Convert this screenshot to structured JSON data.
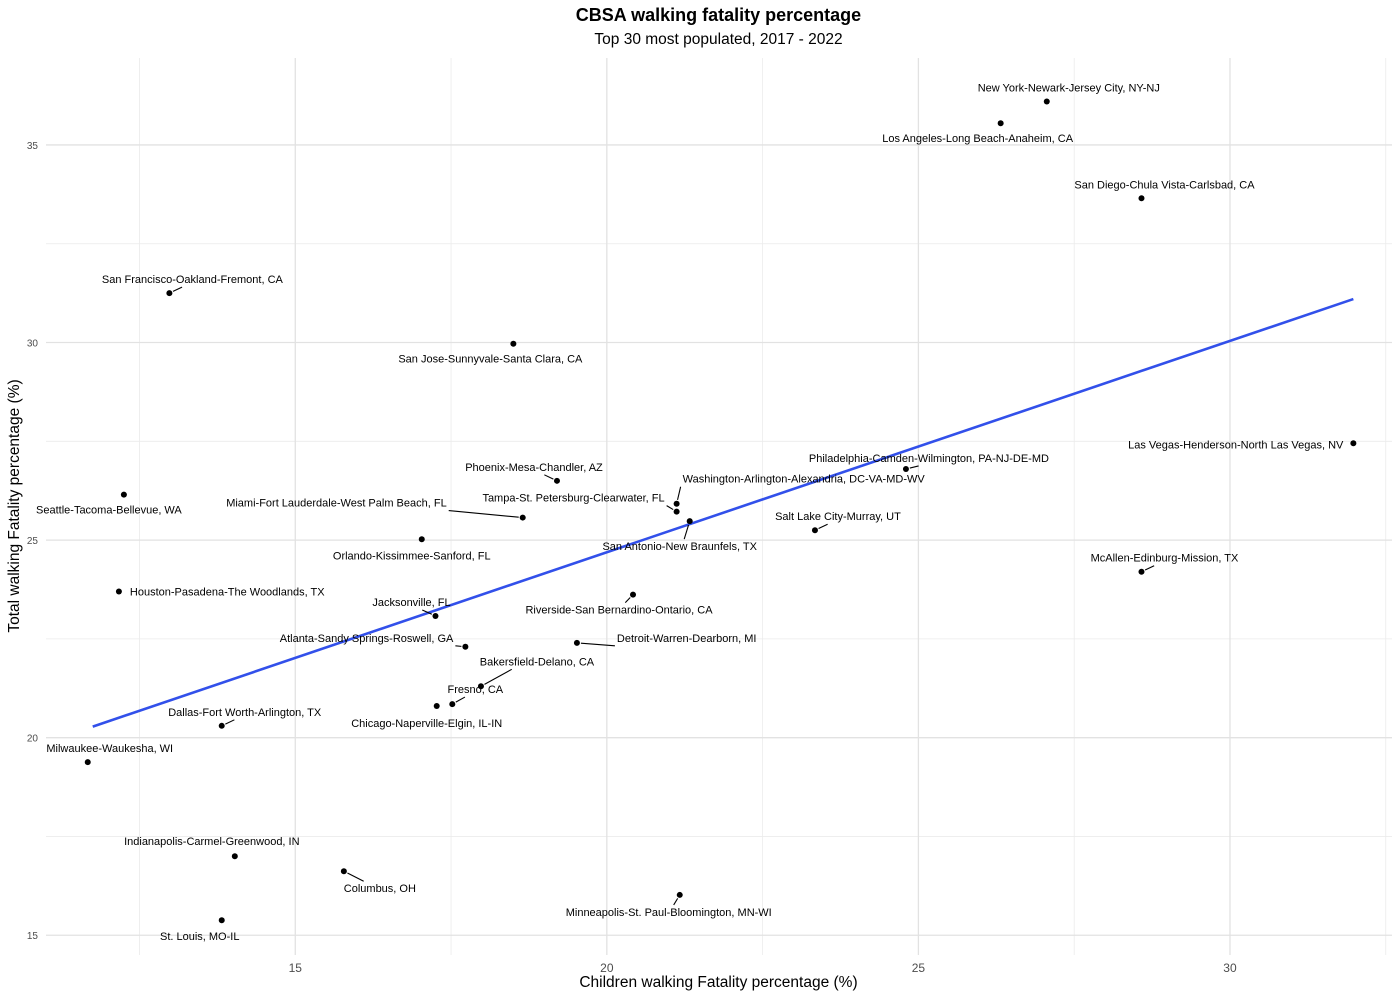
{
  "chart_data": {
    "type": "scatter",
    "title": "CBSA walking fatality percentage",
    "subtitle": "Top 30 most populated, 2017 - 2022",
    "xlabel": "Children walking Fatality percentage (%)",
    "ylabel": "Total walking Fatality percentage (%)",
    "xlim": [
      11.0,
      32.6
    ],
    "ylim": [
      14.5,
      37.2
    ],
    "xticks": [
      15,
      20,
      25,
      30
    ],
    "yticks": [
      15,
      20,
      25,
      30,
      35
    ],
    "grid": true,
    "legend": "none",
    "point_color": "#000000",
    "trend_color": "#3250ea",
    "trendline": {
      "x": [
        11.75,
        31.98
      ],
      "y": [
        20.28,
        31.1
      ]
    },
    "points": [
      {
        "label": "New York-Newark-Jersey City, NY-NJ",
        "x": 27.06,
        "y": 36.1
      },
      {
        "label": "Los Angeles-Long Beach-Anaheim, CA",
        "x": 26.32,
        "y": 35.55
      },
      {
        "label": "San Diego-Chula Vista-Carlsbad, CA",
        "x": 28.58,
        "y": 33.65
      },
      {
        "label": "San Francisco-Oakland-Fremont, CA",
        "x": 12.98,
        "y": 31.25
      },
      {
        "label": "San Jose-Sunnyvale-Santa Clara, CA",
        "x": 18.5,
        "y": 29.97
      },
      {
        "label": "Las Vegas-Henderson-North Las Vegas, NV",
        "x": 31.98,
        "y": 27.45
      },
      {
        "label": "Philadelphia-Camden-Wilmington, PA-NJ-DE-MD",
        "x": 24.8,
        "y": 26.8
      },
      {
        "label": "Phoenix-Mesa-Chandler, AZ",
        "x": 19.2,
        "y": 26.5
      },
      {
        "label": "Seattle-Tacoma-Bellevue, WA",
        "x": 12.25,
        "y": 26.15
      },
      {
        "label": "Washington-Arlington-Alexandria, DC-VA-MD-WV",
        "x": 21.12,
        "y": 25.92
      },
      {
        "label": "Tampa-St. Petersburg-Clearwater, FL",
        "x": 21.12,
        "y": 25.72
      },
      {
        "label": "Miami-Fort Lauderdale-West Palm Beach, FL",
        "x": 18.65,
        "y": 25.57
      },
      {
        "label": "San Antonio-New Braunfels, TX",
        "x": 21.33,
        "y": 25.48
      },
      {
        "label": "Salt Lake City-Murray, UT",
        "x": 23.34,
        "y": 25.25
      },
      {
        "label": "Orlando-Kissimmee-Sanford, FL",
        "x": 17.03,
        "y": 25.02
      },
      {
        "label": "McAllen-Edinburg-Mission, TX",
        "x": 28.58,
        "y": 24.2
      },
      {
        "label": "Houston-Pasadena-The Woodlands, TX",
        "x": 12.17,
        "y": 23.7
      },
      {
        "label": "Riverside-San Bernardino-Ontario, CA",
        "x": 20.42,
        "y": 23.62
      },
      {
        "label": "Jacksonville, FL",
        "x": 17.25,
        "y": 23.08
      },
      {
        "label": "Atlanta-Sandy Springs-Roswell, GA",
        "x": 17.73,
        "y": 22.3
      },
      {
        "label": "Detroit-Warren-Dearborn, MI",
        "x": 19.52,
        "y": 22.4
      },
      {
        "label": "Bakersfield-Delano, CA",
        "x": 17.98,
        "y": 21.3
      },
      {
        "label": "Fresno, CA",
        "x": 17.52,
        "y": 20.85
      },
      {
        "label": "Chicago-Naperville-Elgin, IL-IN",
        "x": 17.27,
        "y": 20.8
      },
      {
        "label": "Dallas-Fort Worth-Arlington, TX",
        "x": 13.82,
        "y": 20.3
      },
      {
        "label": "Milwaukee-Waukesha, WI",
        "x": 11.67,
        "y": 19.38
      },
      {
        "label": "Indianapolis-Carmel-Greenwood, IN",
        "x": 14.03,
        "y": 17.0
      },
      {
        "label": "Columbus, OH",
        "x": 15.78,
        "y": 16.62
      },
      {
        "label": "Minneapolis-St. Paul-Bloomington, MN-WI",
        "x": 21.17,
        "y": 16.02
      },
      {
        "label": "St. Louis, MO-IL",
        "x": 13.82,
        "y": 15.38
      }
    ]
  }
}
